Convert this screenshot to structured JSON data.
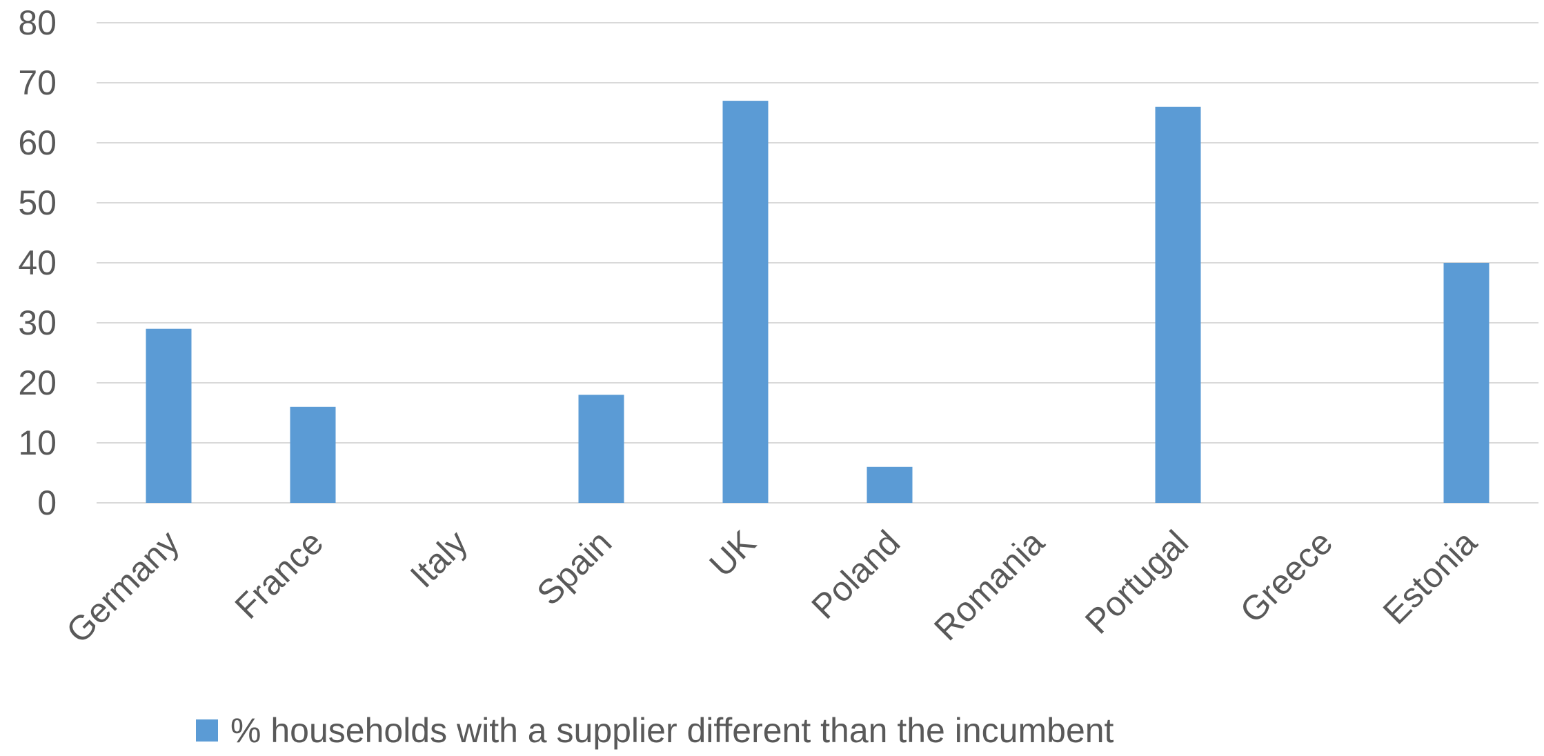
{
  "chart_data": {
    "type": "bar",
    "categories": [
      "Germany",
      "France",
      "Italy",
      "Spain",
      "UK",
      "Poland",
      "Romania",
      "Portugal",
      "Greece",
      "Estonia"
    ],
    "series": [
      {
        "name": "% households with a supplier different than the incumbent",
        "values": [
          29,
          16,
          null,
          18,
          67,
          6,
          null,
          66,
          null,
          40
        ],
        "color": "#5B9BD5"
      }
    ],
    "title": "",
    "xlabel": "",
    "ylabel": "",
    "ylim": [
      0,
      80
    ],
    "yticks": [
      0,
      10,
      20,
      30,
      40,
      50,
      60,
      70,
      80
    ],
    "grid": true,
    "legend": "bottom"
  },
  "colors": {
    "bar": "#5B9BD5",
    "grid": "#d9d9d9",
    "text": "#595959"
  }
}
